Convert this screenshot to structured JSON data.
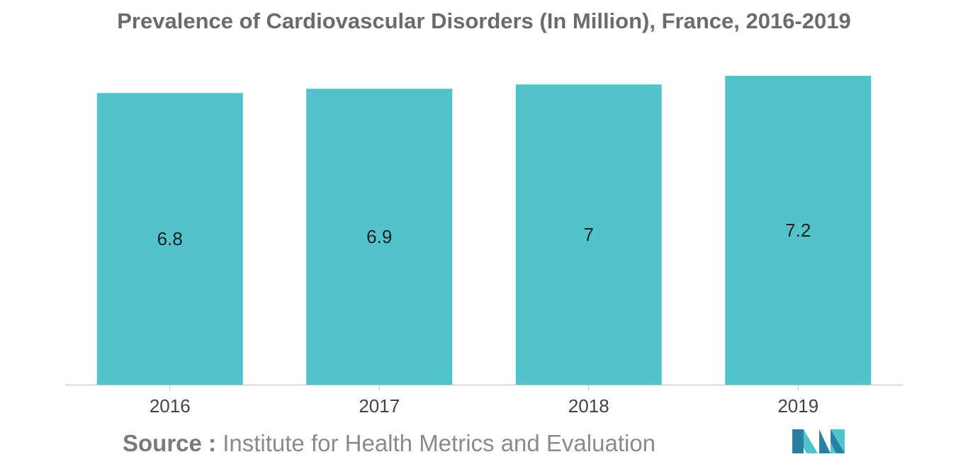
{
  "chart_data": {
    "type": "bar",
    "title": "Prevalence of Cardiovascular Disorders (In Million), France, 2016-2019",
    "categories": [
      "2016",
      "2017",
      "2018",
      "2019"
    ],
    "values": [
      6.8,
      6.9,
      7,
      7.2
    ],
    "data_labels": [
      "6.8",
      "6.9",
      "7",
      "7.2"
    ],
    "xlabel": "",
    "ylabel": "",
    "ylim": [
      0,
      7.4
    ],
    "grid": false,
    "legend": "none",
    "bar_color": "#52c3cb"
  },
  "source": {
    "label": "Source :",
    "text": "Institute for Health Metrics and Evaluation"
  },
  "logo": {
    "icon": "mordor-intelligence-logo",
    "colors": [
      "#2b7fa3",
      "#52c3cb"
    ]
  }
}
